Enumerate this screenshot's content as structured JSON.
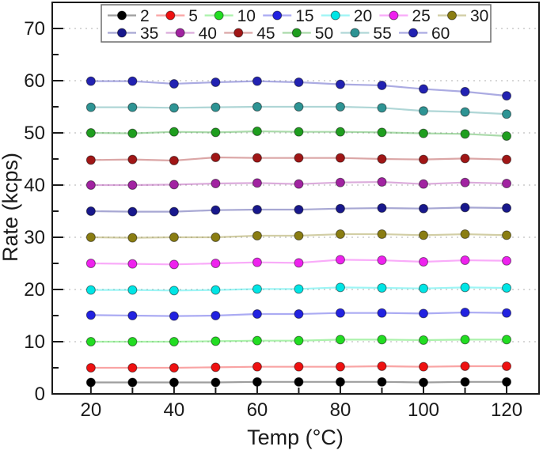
{
  "chart_data": {
    "type": "line",
    "title": "",
    "xlabel": "Temp (°C)",
    "ylabel": "Rate (kcps)",
    "x": [
      20,
      30,
      40,
      50,
      60,
      70,
      80,
      90,
      100,
      110,
      120
    ],
    "series": [
      {
        "name": "2",
        "color": "#000000",
        "values": [
          2.2,
          2.2,
          2.2,
          2.2,
          2.3,
          2.3,
          2.3,
          2.3,
          2.2,
          2.3,
          2.3
        ]
      },
      {
        "name": "5",
        "color": "#EE1111",
        "values": [
          5.0,
          5.0,
          5.0,
          5.1,
          5.2,
          5.2,
          5.2,
          5.3,
          5.2,
          5.3,
          5.3
        ]
      },
      {
        "name": "10",
        "color": "#22DD22",
        "values": [
          10.0,
          10.0,
          10.0,
          10.1,
          10.2,
          10.2,
          10.4,
          10.4,
          10.3,
          10.4,
          10.4
        ]
      },
      {
        "name": "15",
        "color": "#2222E0",
        "values": [
          15.1,
          15.0,
          14.9,
          15.0,
          15.3,
          15.3,
          15.5,
          15.5,
          15.4,
          15.6,
          15.5
        ]
      },
      {
        "name": "20",
        "color": "#00E5E5",
        "values": [
          19.9,
          19.9,
          19.8,
          19.9,
          20.1,
          20.1,
          20.4,
          20.3,
          20.2,
          20.4,
          20.3
        ]
      },
      {
        "name": "25",
        "color": "#EE22EE",
        "values": [
          25.0,
          24.9,
          24.8,
          25.0,
          25.2,
          25.1,
          25.7,
          25.6,
          25.3,
          25.6,
          25.5
        ]
      },
      {
        "name": "30",
        "color": "#8A7D12",
        "values": [
          30.0,
          29.9,
          30.0,
          30.0,
          30.3,
          30.3,
          30.6,
          30.6,
          30.4,
          30.6,
          30.4
        ]
      },
      {
        "name": "35",
        "color": "#18188C",
        "values": [
          35.0,
          34.9,
          34.9,
          35.2,
          35.3,
          35.3,
          35.5,
          35.6,
          35.5,
          35.7,
          35.6
        ]
      },
      {
        "name": "40",
        "color": "#A123A1",
        "values": [
          40.0,
          40.0,
          40.1,
          40.3,
          40.4,
          40.2,
          40.5,
          40.6,
          40.2,
          40.5,
          40.3
        ]
      },
      {
        "name": "45",
        "color": "#A01616",
        "values": [
          44.8,
          44.9,
          44.7,
          45.3,
          45.2,
          45.2,
          45.2,
          45.0,
          44.9,
          45.1,
          44.9
        ]
      },
      {
        "name": "50",
        "color": "#1F9E1F",
        "values": [
          50.0,
          49.9,
          50.2,
          50.1,
          50.3,
          50.2,
          50.2,
          50.1,
          49.9,
          49.8,
          49.4
        ]
      },
      {
        "name": "55",
        "color": "#2E9494",
        "values": [
          54.9,
          54.9,
          54.8,
          54.9,
          55.0,
          55.0,
          55.0,
          54.8,
          54.2,
          54.0,
          53.6
        ]
      },
      {
        "name": "60",
        "color": "#2222B2",
        "values": [
          59.9,
          59.9,
          59.4,
          59.7,
          59.9,
          59.7,
          59.3,
          59.1,
          58.4,
          57.9,
          57.1
        ]
      }
    ],
    "xlim": [
      10.7,
      127.8
    ],
    "ylim": [
      0,
      75
    ],
    "x_major_ticks": [
      20,
      40,
      60,
      80,
      100,
      120
    ],
    "x_minor_ticks": [
      30,
      50,
      70,
      90,
      110
    ],
    "y_major_ticks": [
      0,
      10,
      20,
      30,
      40,
      50,
      60,
      70
    ],
    "y_minor_ticks": [
      5,
      15,
      25,
      35,
      45,
      55,
      65
    ],
    "grid": "horizontal-dotted",
    "grid_color": "#CACACA",
    "frame_color": "#1A1A1A",
    "legend_position": "top",
    "legend_rows": [
      7,
      6
    ],
    "legend_labels": [
      "2",
      "5",
      "10",
      "15",
      "20",
      "25",
      "30",
      "35",
      "40",
      "45",
      "50",
      "55",
      "60"
    ]
  }
}
